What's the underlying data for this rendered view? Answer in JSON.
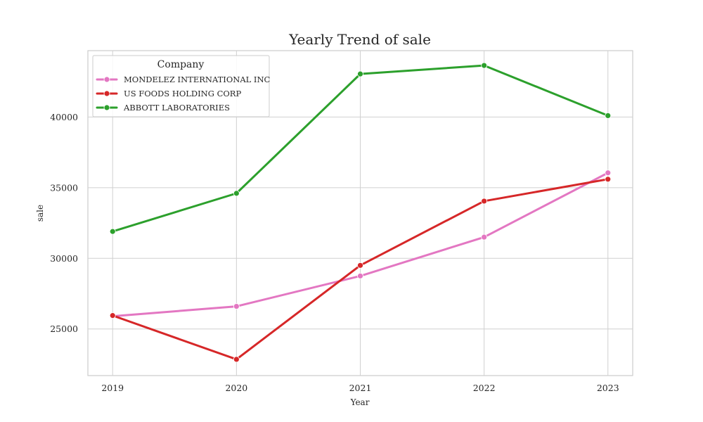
{
  "chart_data": {
    "type": "line",
    "title": "Yearly Trend of sale",
    "xlabel": "Year",
    "ylabel": "sale",
    "x": [
      2019,
      2020,
      2021,
      2022,
      2023
    ],
    "xticks": [
      "2019",
      "2020",
      "2021",
      "2022",
      "2023"
    ],
    "yticks": [
      25000,
      30000,
      35000,
      40000
    ],
    "ytick_labels": [
      "25000",
      "30000",
      "35000",
      "40000"
    ],
    "xlim": [
      2018.8,
      2023.2
    ],
    "ylim": [
      21700,
      44700
    ],
    "grid": true,
    "legend": {
      "title": "Company",
      "placement": "top-left"
    },
    "series": [
      {
        "name": "MONDELEZ INTERNATIONAL INC",
        "color": "#e377c2",
        "values": [
          25900,
          26600,
          28750,
          31500,
          36050
        ]
      },
      {
        "name": "US FOODS HOLDING CORP",
        "color": "#d62728",
        "values": [
          25950,
          22850,
          29500,
          34050,
          35600
        ]
      },
      {
        "name": "ABBOTT LABORATORIES",
        "color": "#2ca02c",
        "values": [
          31900,
          34600,
          43050,
          43650,
          40100
        ]
      }
    ]
  }
}
